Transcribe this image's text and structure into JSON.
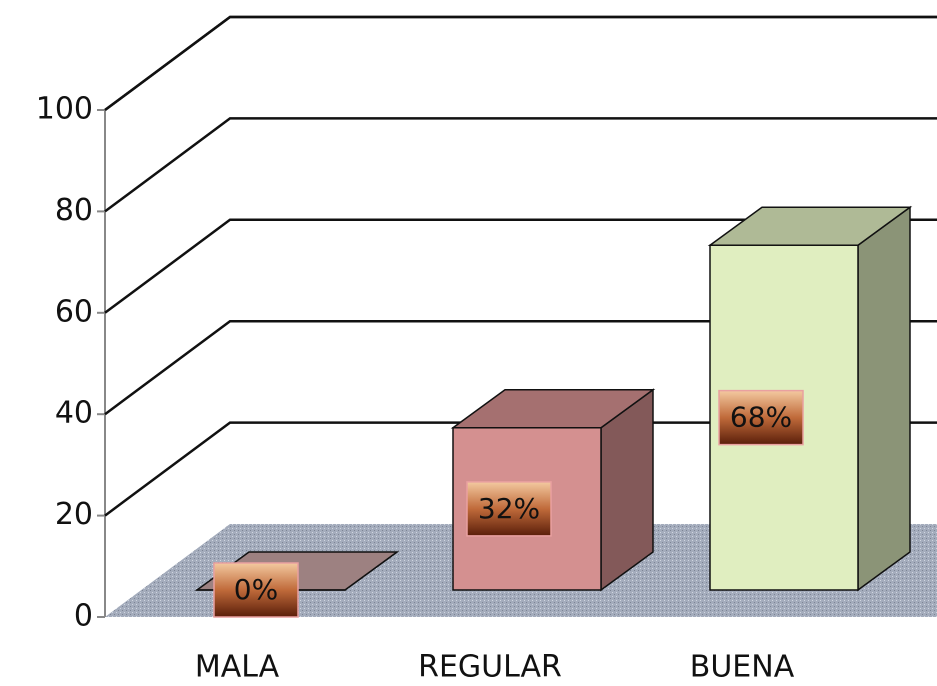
{
  "chart_data": {
    "type": "bar3d",
    "categories": [
      "MALA",
      "REGULAR",
      "BUENA"
    ],
    "values": [
      0,
      32,
      68
    ],
    "value_labels": [
      "0%",
      "32%",
      "68%"
    ],
    "colors": [
      "#c9a6a6",
      "#d49090",
      "#e0eec0"
    ],
    "ylim": [
      0,
      100
    ],
    "yticks": [
      0,
      20,
      40,
      60,
      80,
      100
    ],
    "grid": true
  }
}
